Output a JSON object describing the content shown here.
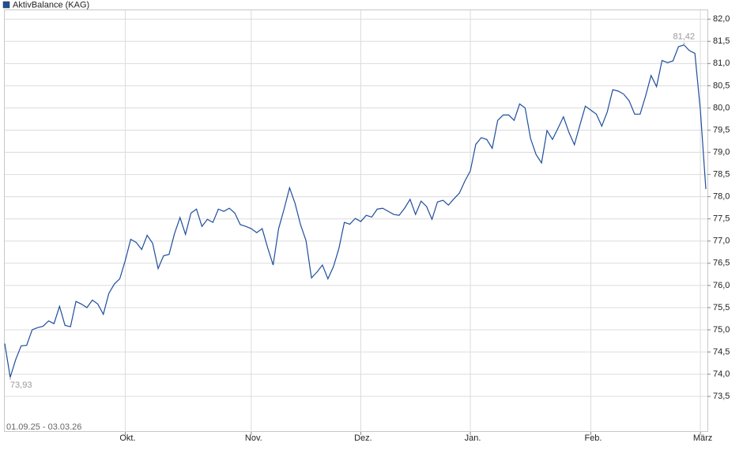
{
  "chart_data": {
    "type": "line",
    "subtitle": "01.09.25 - 03.03.26",
    "series": [
      {
        "name": "AktivBalance (KAG)",
        "color": "#1f4e9c",
        "values": [
          74.69,
          73.93,
          74.33,
          74.64,
          74.65,
          75.0,
          75.05,
          75.08,
          75.2,
          75.14,
          75.53,
          75.1,
          75.07,
          75.64,
          75.58,
          75.5,
          75.67,
          75.58,
          75.35,
          75.82,
          76.03,
          76.15,
          76.56,
          77.04,
          76.97,
          76.81,
          77.13,
          76.95,
          76.38,
          76.67,
          76.7,
          77.17,
          77.53,
          77.15,
          77.63,
          77.72,
          77.33,
          77.49,
          77.42,
          77.72,
          77.67,
          77.74,
          77.63,
          77.37,
          77.33,
          77.28,
          77.19,
          77.28,
          76.85,
          76.46,
          77.28,
          77.72,
          78.2,
          77.85,
          77.37,
          77.01,
          76.17,
          76.3,
          76.46,
          76.15,
          76.42,
          76.83,
          77.42,
          77.38,
          77.51,
          77.44,
          77.58,
          77.54,
          77.72,
          77.74,
          77.67,
          77.6,
          77.58,
          77.74,
          77.94,
          77.6,
          77.9,
          77.78,
          77.49,
          77.88,
          77.92,
          77.81,
          77.95,
          78.08,
          78.35,
          78.58,
          79.18,
          79.33,
          79.29,
          79.09,
          79.72,
          79.84,
          79.84,
          79.72,
          80.09,
          80.0,
          79.31,
          78.95,
          78.76,
          79.49,
          79.29,
          79.54,
          79.8,
          79.45,
          79.17,
          79.61,
          80.04,
          79.95,
          79.86,
          79.59,
          79.91,
          80.41,
          80.38,
          80.31,
          80.16,
          79.86,
          79.86,
          80.27,
          80.73,
          80.48,
          81.07,
          81.02,
          81.06,
          81.38,
          81.42,
          81.29,
          81.23,
          79.95,
          78.17
        ],
        "value_labels": [
          null,
          "73,93",
          null,
          null,
          null,
          null,
          null,
          null,
          null,
          null,
          null,
          null,
          null,
          null,
          null,
          null,
          null,
          null,
          null,
          null,
          null,
          null,
          null,
          null,
          null,
          null,
          null,
          null,
          null,
          null,
          null,
          null,
          null,
          null,
          null,
          null,
          null,
          null,
          null,
          null,
          null,
          null,
          null,
          null,
          null,
          null,
          null,
          null,
          null,
          null,
          null,
          null,
          null,
          null,
          null,
          null,
          null,
          null,
          null,
          null,
          null,
          null,
          null,
          null,
          null,
          null,
          null,
          null,
          null,
          null,
          null,
          null,
          null,
          null,
          null,
          null,
          null,
          null,
          null,
          null,
          null,
          null,
          null,
          null,
          null,
          null,
          null,
          null,
          null,
          null,
          null,
          null,
          null,
          null,
          null,
          null,
          null,
          null,
          null,
          null,
          null,
          null,
          null,
          null,
          null,
          null,
          null,
          null,
          null,
          null,
          null,
          null,
          null,
          null,
          null,
          null,
          null,
          null,
          null,
          null,
          null,
          null,
          null,
          null,
          "81,42",
          null,
          null,
          null,
          null
        ]
      }
    ],
    "xlim": [
      0,
      128
    ],
    "xticks": [
      {
        "value": 22,
        "label": "Okt."
      },
      {
        "value": 45,
        "label": "Nov."
      },
      {
        "value": 65,
        "label": "Dez."
      },
      {
        "value": 85,
        "label": "Jan."
      },
      {
        "value": 107,
        "label": "Feb."
      },
      {
        "value": 127,
        "label": "März"
      }
    ],
    "ylim": [
      72.7,
      82.2
    ],
    "yticks": [
      {
        "value": 73.5,
        "label": "73,5"
      },
      {
        "value": 74.0,
        "label": "74,0"
      },
      {
        "value": 74.5,
        "label": "74,5"
      },
      {
        "value": 75.0,
        "label": "75,0"
      },
      {
        "value": 75.5,
        "label": "75,5"
      },
      {
        "value": 76.0,
        "label": "76,0"
      },
      {
        "value": 76.5,
        "label": "76,5"
      },
      {
        "value": 77.0,
        "label": "77,0"
      },
      {
        "value": 77.5,
        "label": "77,5"
      },
      {
        "value": 78.0,
        "label": "78,0"
      },
      {
        "value": 78.5,
        "label": "78,5"
      },
      {
        "value": 79.0,
        "label": "79,0"
      },
      {
        "value": 79.5,
        "label": "79,5"
      },
      {
        "value": 80.0,
        "label": "80,0"
      },
      {
        "value": 80.5,
        "label": "80,5"
      },
      {
        "value": 81.0,
        "label": "81,0"
      },
      {
        "value": 81.5,
        "label": "81,5"
      },
      {
        "value": 82.0,
        "label": "82,0"
      }
    ],
    "grid": true,
    "legend": "top-left"
  }
}
